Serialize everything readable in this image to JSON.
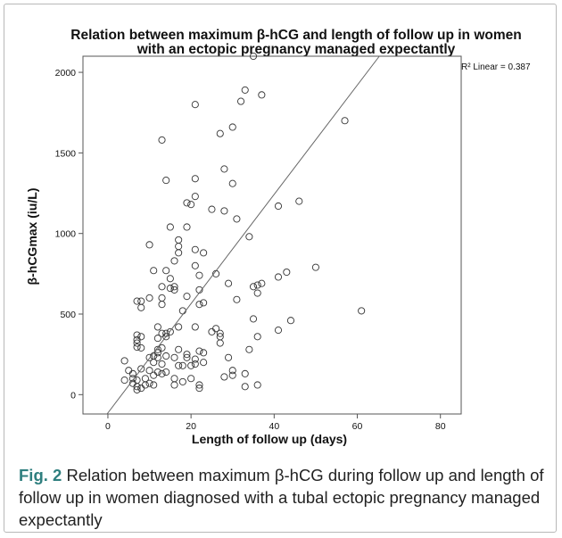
{
  "chart_data": {
    "type": "scatter",
    "title_line1": "Relation between maximum β-hCG and length of follow up in women",
    "title_line2": "with an ectopic pregnancy managed expectantly",
    "xlabel": "Length of follow up (days)",
    "ylabel": "β-hCGmax (iu/L)",
    "xlim": [
      -6,
      85
    ],
    "ylim": [
      -120,
      2100
    ],
    "xticks": [
      "0",
      "20",
      "40",
      "60",
      "80"
    ],
    "xtick_values": [
      0,
      20,
      40,
      60,
      80
    ],
    "yticks": [
      "0",
      "500",
      "1000",
      "1500",
      "2000"
    ],
    "ytick_values": [
      0,
      500,
      1000,
      1500,
      2000
    ],
    "grid": false,
    "marker": "open-circle",
    "fit_line": {
      "label": "R² Linear = 0.387",
      "x": [
        -0.2,
        65.3
      ],
      "y": [
        -120,
        2100
      ]
    },
    "points": [
      [
        4,
        210
      ],
      [
        4,
        90
      ],
      [
        5,
        150
      ],
      [
        6,
        130
      ],
      [
        6,
        100
      ],
      [
        6,
        70
      ],
      [
        7,
        90
      ],
      [
        7,
        50
      ],
      [
        7,
        30
      ],
      [
        7,
        370
      ],
      [
        7,
        340
      ],
      [
        7,
        320
      ],
      [
        7,
        295
      ],
      [
        7,
        580
      ],
      [
        8,
        580
      ],
      [
        8,
        540
      ],
      [
        8,
        360
      ],
      [
        8,
        290
      ],
      [
        8,
        160
      ],
      [
        8,
        40
      ],
      [
        9,
        100
      ],
      [
        9,
        60
      ],
      [
        10,
        230
      ],
      [
        10,
        150
      ],
      [
        10,
        70
      ],
      [
        10,
        930
      ],
      [
        10,
        600
      ],
      [
        11,
        240
      ],
      [
        11,
        200
      ],
      [
        11,
        120
      ],
      [
        11,
        60
      ],
      [
        11,
        770
      ],
      [
        12,
        350
      ],
      [
        12,
        280
      ],
      [
        12,
        260
      ],
      [
        12,
        140
      ],
      [
        12,
        420
      ],
      [
        12,
        230
      ],
      [
        13,
        1580
      ],
      [
        13,
        670
      ],
      [
        13,
        600
      ],
      [
        13,
        560
      ],
      [
        13,
        290
      ],
      [
        13,
        190
      ],
      [
        13,
        130
      ],
      [
        13,
        380
      ],
      [
        14,
        1330
      ],
      [
        14,
        770
      ],
      [
        14,
        380
      ],
      [
        14,
        360
      ],
      [
        14,
        240
      ],
      [
        14,
        140
      ],
      [
        15,
        1040
      ],
      [
        15,
        660
      ],
      [
        15,
        720
      ],
      [
        15,
        390
      ],
      [
        16,
        670
      ],
      [
        16,
        830
      ],
      [
        16,
        650
      ],
      [
        16,
        60
      ],
      [
        16,
        100
      ],
      [
        16,
        230
      ],
      [
        17,
        960
      ],
      [
        17,
        920
      ],
      [
        17,
        880
      ],
      [
        17,
        420
      ],
      [
        17,
        280
      ],
      [
        17,
        180
      ],
      [
        18,
        520
      ],
      [
        18,
        180
      ],
      [
        18,
        80
      ],
      [
        19,
        1190
      ],
      [
        19,
        1040
      ],
      [
        19,
        610
      ],
      [
        19,
        250
      ],
      [
        19,
        230
      ],
      [
        20,
        1180
      ],
      [
        20,
        100
      ],
      [
        20,
        180
      ],
      [
        21,
        1800
      ],
      [
        21,
        1340
      ],
      [
        21,
        1230
      ],
      [
        21,
        900
      ],
      [
        21,
        800
      ],
      [
        21,
        420
      ],
      [
        21,
        220
      ],
      [
        21,
        190
      ],
      [
        22,
        740
      ],
      [
        22,
        650
      ],
      [
        22,
        560
      ],
      [
        22,
        270
      ],
      [
        22,
        60
      ],
      [
        22,
        40
      ],
      [
        23,
        880
      ],
      [
        23,
        570
      ],
      [
        23,
        260
      ],
      [
        23,
        200
      ],
      [
        25,
        1150
      ],
      [
        25,
        390
      ],
      [
        26,
        410
      ],
      [
        26,
        750
      ],
      [
        27,
        1620
      ],
      [
        27,
        320
      ],
      [
        27,
        360
      ],
      [
        27,
        380
      ],
      [
        28,
        1400
      ],
      [
        28,
        1140
      ],
      [
        28,
        110
      ],
      [
        29,
        690
      ],
      [
        29,
        230
      ],
      [
        30,
        1660
      ],
      [
        30,
        1310
      ],
      [
        30,
        120
      ],
      [
        30,
        150
      ],
      [
        31,
        1090
      ],
      [
        31,
        590
      ],
      [
        32,
        1820
      ],
      [
        33,
        1890
      ],
      [
        33,
        130
      ],
      [
        33,
        50
      ],
      [
        34,
        980
      ],
      [
        34,
        280
      ],
      [
        35,
        670
      ],
      [
        35,
        470
      ],
      [
        35,
        2100
      ],
      [
        36,
        680
      ],
      [
        36,
        630
      ],
      [
        36,
        360
      ],
      [
        36,
        60
      ],
      [
        37,
        1860
      ],
      [
        37,
        690
      ],
      [
        41,
        1170
      ],
      [
        41,
        730
      ],
      [
        41,
        400
      ],
      [
        43,
        760
      ],
      [
        44,
        460
      ],
      [
        46,
        1200
      ],
      [
        50,
        790
      ],
      [
        57,
        1700
      ],
      [
        61,
        520
      ]
    ]
  },
  "caption": {
    "fig_label": "Fig. 2",
    "text": " Relation between maximum β-hCG during follow up and length of follow up in women diagnosed with a tubal ectopic pregnancy managed expectantly"
  }
}
